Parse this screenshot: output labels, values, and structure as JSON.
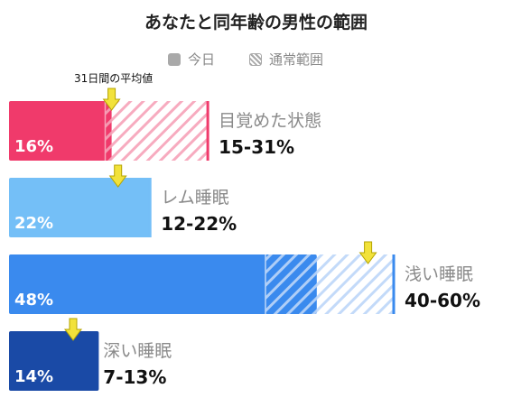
{
  "chart_data": {
    "type": "bar",
    "title": "あなたと同年齢の男性の範囲",
    "legend": [
      {
        "label": "今日",
        "pattern": "solid",
        "color": "#a9a9a9"
      },
      {
        "label": "通常範囲",
        "pattern": "hatched",
        "color": "#a9a9a9"
      }
    ],
    "legend_position": "top",
    "avg_marker_label": "31日間の平均値",
    "xlim": [
      0,
      100
    ],
    "series": [
      {
        "name": "目覚めた状態",
        "value": 16,
        "value_label": "16%",
        "range": [
          15,
          31
        ],
        "range_label": "15-31%",
        "avg": 16,
        "color": "#f03a6b",
        "range_color": "#f6a2b8"
      },
      {
        "name": "レム睡眠",
        "value": 22,
        "value_label": "22%",
        "range": [
          12,
          22
        ],
        "range_label": "12-22%",
        "avg": 17,
        "color": "#74bff7",
        "range_color": "#74bff7"
      },
      {
        "name": "浅い睡眠",
        "value": 48,
        "value_label": "48%",
        "range": [
          40,
          60
        ],
        "range_label": "40-60%",
        "avg": 56,
        "color": "#3a8aee",
        "range_color": "#bcd6f8"
      },
      {
        "name": "深い睡眠",
        "value": 14,
        "value_label": "14%",
        "range": [
          7,
          13
        ],
        "range_label": "7-13%",
        "avg": 10,
        "color": "#1a4aa6",
        "range_color": "#1a4aa6"
      }
    ]
  }
}
